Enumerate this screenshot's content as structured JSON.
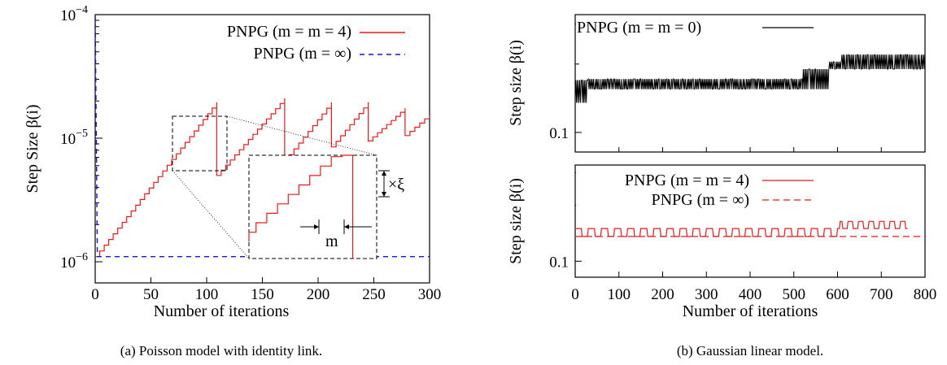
{
  "chart_data": [
    {
      "type": "line",
      "panel": "a",
      "caption": "(a) Poisson model with identity link.",
      "xlabel": "Number of iterations",
      "ylabel": "Step Size β(i)",
      "yscale": "log",
      "xlim": [
        0,
        300
      ],
      "ylim": [
        1e-06,
        0.0001
      ],
      "x_ticks": [
        "0",
        "50",
        "100",
        "150",
        "200",
        "250",
        "300"
      ],
      "y_ticks": [
        {
          "value": 1e-06,
          "base": "10",
          "exp": "−6"
        },
        {
          "value": 1e-05,
          "base": "10",
          "exp": "−5"
        },
        {
          "value": 0.0001,
          "base": "10",
          "exp": "−4"
        }
      ],
      "legend_position": "top-right",
      "series": [
        {
          "name": "PNPG (m = m = 4)",
          "color": "#e8191c",
          "style": "solid",
          "start": 1.1e-06,
          "step_every": 4,
          "growth_per_step": 1.1,
          "resets": [
            {
              "at": 109,
              "peak": 1.95e-05,
              "to": 5e-06
            },
            {
              "at": 170,
              "peak": 2.1e-05,
              "to": 6.6e-06
            },
            {
              "at": 212,
              "peak": 1.95e-05,
              "to": 8.5e-06
            },
            {
              "at": 245,
              "peak": 1.95e-05,
              "to": 9.5e-06
            },
            {
              "at": 278,
              "peak": 1.75e-05,
              "to": 1.05e-05
            }
          ],
          "end": {
            "x": 300,
            "y": 1.55e-05
          }
        },
        {
          "name": "PNPG (m = ∞)",
          "color": "#1515e0",
          "style": "dashed",
          "points": [
            [
              0,
              0.0001
            ],
            [
              2,
              1.1e-06
            ],
            [
              300,
              1.1e-06
            ]
          ]
        }
      ],
      "annotations": {
        "zoom_x_label": "m",
        "zoom_y_label": "×ξ"
      }
    },
    {
      "type": "line",
      "panel": "b-top",
      "xlim": [
        0,
        800
      ],
      "ylim": [
        0.082,
        0.33
      ],
      "yscale": "log",
      "ylabel": "Step size β(i)",
      "y_ticks": [
        {
          "value": 0.1,
          "label": "0.1"
        }
      ],
      "legend_position": "top-left",
      "series": [
        {
          "name": "PNPG (m = m = 0)",
          "color": "#000000",
          "style": "solid",
          "levels": [
            {
              "from": 0,
              "to": 30,
              "low": 0.135,
              "high": 0.17
            },
            {
              "from": 30,
              "to": 520,
              "low": 0.155,
              "high": 0.172
            },
            {
              "from": 520,
              "to": 580,
              "low": 0.155,
              "high": 0.19
            },
            {
              "from": 580,
              "to": 610,
              "low": 0.19,
              "high": 0.205
            },
            {
              "from": 610,
              "to": 800,
              "low": 0.19,
              "high": 0.22
            }
          ]
        }
      ]
    },
    {
      "type": "line",
      "panel": "b-bottom",
      "caption": "(b) Gaussian linear model.",
      "xlabel": "Number of iterations",
      "ylabel": "Step size β(i)",
      "yscale": "log",
      "xlim": [
        0,
        800
      ],
      "ylim": [
        0.082,
        0.33
      ],
      "x_ticks": [
        "0",
        "100",
        "200",
        "300",
        "400",
        "500",
        "600",
        "700",
        "800"
      ],
      "y_ticks": [
        {
          "value": 0.1,
          "label": "0.1"
        }
      ],
      "legend_position": "top-right",
      "series": [
        {
          "name": "PNPG (m = m = 4)",
          "color": "#e8191c",
          "style": "solid",
          "base": 0.136,
          "pulse_high": 0.15,
          "raised_base": 0.15,
          "raised_high": 0.164,
          "raised_from": 605,
          "end_x": 760
        },
        {
          "name": "PNPG (m = ∞)",
          "color": "#e8191c",
          "style": "dashed",
          "points": [
            [
              0,
              0.136
            ],
            [
              800,
              0.136
            ]
          ]
        }
      ]
    }
  ]
}
